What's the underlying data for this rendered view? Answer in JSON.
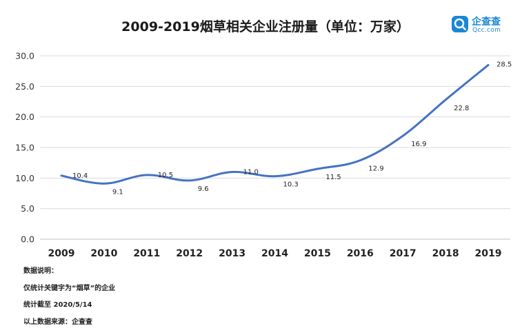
{
  "title": "2009-2019烟草相关企业注册量（单位：万家）",
  "logo": {
    "name": "企查查",
    "domain": "Qcc.com",
    "color": "#1a86d6",
    "icon": "qcc-magnifier-logo"
  },
  "notes": [
    "数据说明：",
    "仅统计关键字为“烟草”的企业",
    "统计截至 2020/5/14",
    "以上数据来源：企查查"
  ],
  "chart_data": {
    "type": "line",
    "categories": [
      "2009",
      "2010",
      "2011",
      "2012",
      "2013",
      "2014",
      "2015",
      "2016",
      "2017",
      "2018",
      "2019"
    ],
    "series": [
      {
        "values": [
          10.4,
          9.1,
          10.5,
          9.6,
          11.0,
          10.3,
          11.5,
          12.9,
          16.9,
          22.8,
          28.5
        ],
        "color": "#4472c4"
      }
    ],
    "ylim": [
      0,
      30
    ],
    "yticks": [
      "0.0",
      "5.0",
      "10.0",
      "15.0",
      "20.0",
      "25.0",
      "30.0"
    ],
    "grid": true,
    "data_labels": true
  }
}
